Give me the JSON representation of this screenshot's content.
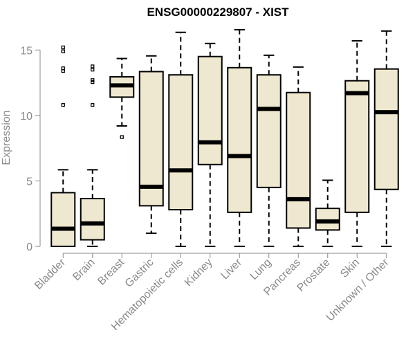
{
  "chart_data": {
    "type": "boxplot",
    "title": "ENSG00000229807 - XIST",
    "xlabel": "",
    "ylabel": "Expression",
    "ylim": [
      0,
      16.6
    ],
    "yticks": [
      0,
      5,
      10,
      15
    ],
    "box_fill": "#efe8d0",
    "box_stroke": "#000000",
    "axis_color": "#8a8a8a",
    "categories": [
      "Bladder",
      "Brain",
      "Breast",
      "Gastric",
      "Hematopoietic cells",
      "Kidney",
      "Liver",
      "Lung",
      "Pancreas",
      "Prostate",
      "Skin",
      "Unknown / Other"
    ],
    "boxes": [
      {
        "label": "Bladder",
        "whisker_low": 0.0,
        "q1": 0.0,
        "median": 1.35,
        "q3": 4.1,
        "whisker_high": 5.85,
        "outliers": [
          10.8,
          13.4,
          13.6,
          14.9,
          15.2
        ]
      },
      {
        "label": "Brain",
        "whisker_low": 0.0,
        "q1": 0.5,
        "median": 1.75,
        "q3": 3.65,
        "whisker_high": 5.85,
        "outliers": [
          10.8,
          12.55,
          12.7,
          13.5,
          13.75
        ]
      },
      {
        "label": "Breast",
        "whisker_low": 9.2,
        "q1": 11.4,
        "median": 12.3,
        "q3": 12.95,
        "whisker_high": 14.35,
        "outliers": [
          8.35
        ]
      },
      {
        "label": "Gastric",
        "whisker_low": 1.0,
        "q1": 3.1,
        "median": 4.55,
        "q3": 13.35,
        "whisker_high": 14.55,
        "outliers": []
      },
      {
        "label": "Hematopoietic cells",
        "whisker_low": 0.0,
        "q1": 2.8,
        "median": 5.8,
        "q3": 13.1,
        "whisker_high": 16.35,
        "outliers": []
      },
      {
        "label": "Kidney",
        "whisker_low": 0.0,
        "q1": 6.25,
        "median": 7.95,
        "q3": 14.5,
        "whisker_high": 15.5,
        "outliers": []
      },
      {
        "label": "Liver",
        "whisker_low": 0.0,
        "q1": 2.6,
        "median": 6.9,
        "q3": 13.65,
        "whisker_high": 16.55,
        "outliers": []
      },
      {
        "label": "Lung",
        "whisker_low": 0.0,
        "q1": 4.5,
        "median": 10.5,
        "q3": 13.1,
        "whisker_high": 14.6,
        "outliers": []
      },
      {
        "label": "Pancreas",
        "whisker_low": 0.0,
        "q1": 1.4,
        "median": 3.6,
        "q3": 11.75,
        "whisker_high": 13.7,
        "outliers": []
      },
      {
        "label": "Prostate",
        "whisker_low": 0.0,
        "q1": 1.25,
        "median": 1.9,
        "q3": 2.9,
        "whisker_high": 5.05,
        "outliers": []
      },
      {
        "label": "Skin",
        "whisker_low": 0.0,
        "q1": 2.6,
        "median": 11.7,
        "q3": 12.65,
        "whisker_high": 15.7,
        "outliers": []
      },
      {
        "label": "Unknown / Other",
        "whisker_low": 0.0,
        "q1": 4.35,
        "median": 10.25,
        "q3": 13.55,
        "whisker_high": 16.45,
        "outliers": []
      }
    ]
  }
}
